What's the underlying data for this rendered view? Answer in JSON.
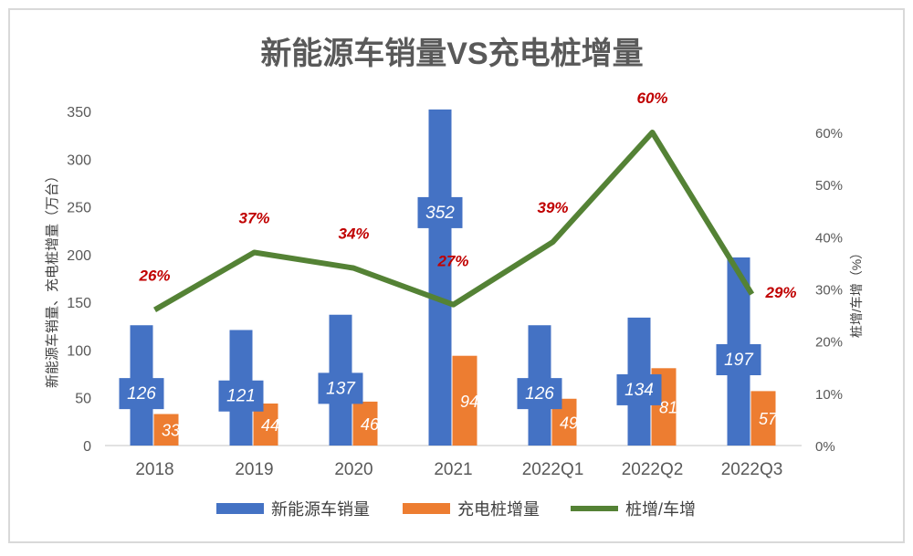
{
  "chart_data": {
    "type": "bar+line",
    "title": "新能源车销量VS充电桩增量",
    "categories": [
      "2018",
      "2019",
      "2020",
      "2021",
      "2022Q1",
      "2022Q2",
      "2022Q3"
    ],
    "series": [
      {
        "name": "新能源车销量",
        "type": "bar",
        "axis": "left",
        "color": "#4472C4",
        "values": [
          126,
          121,
          137,
          352,
          126,
          134,
          197
        ]
      },
      {
        "name": "充电桩增量",
        "type": "bar",
        "axis": "left",
        "color": "#ED7D31",
        "values": [
          33,
          44,
          46,
          94,
          49,
          81,
          57
        ]
      },
      {
        "name": "桩增/车增",
        "type": "line",
        "axis": "right",
        "color": "#548235",
        "values": [
          26,
          37,
          34,
          27,
          39,
          60,
          29
        ],
        "labels": [
          "26%",
          "37%",
          "34%",
          "27%",
          "39%",
          "60%",
          "29%"
        ]
      }
    ],
    "ylabel": "新能源车销量、充电桩增量（万台）",
    "y2label": "桩增/车增（%）",
    "ylim": [
      0,
      350
    ],
    "yticks": [
      "0",
      "50",
      "100",
      "150",
      "200",
      "250",
      "300",
      "350"
    ],
    "y2lim": [
      0,
      60
    ],
    "y2ticks": [
      "0%",
      "10%",
      "20%",
      "30%",
      "40%",
      "50%",
      "60%"
    ],
    "grid": false,
    "legend": "bottom",
    "label_color": "#C00000"
  }
}
